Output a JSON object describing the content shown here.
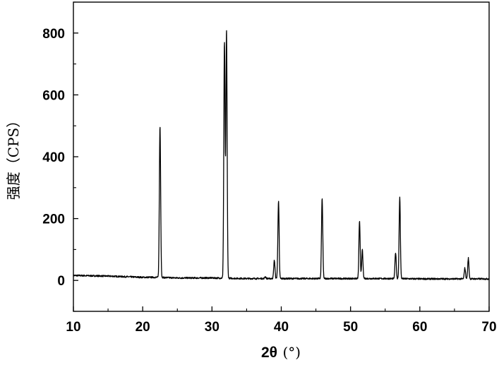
{
  "chart_data": {
    "type": "line",
    "title": "",
    "xlabel": {
      "main": "2θ",
      "unit": "(°)"
    },
    "ylabel": "强度（CPS）",
    "xlim": [
      10,
      70
    ],
    "ylim": [
      -100,
      900
    ],
    "xticks": [
      10,
      20,
      30,
      40,
      50,
      60,
      70
    ],
    "yticks": [
      0,
      200,
      400,
      600,
      800
    ],
    "grid": false,
    "legend": "none",
    "colors": {
      "line": "#000000",
      "axes": "#000000",
      "background": "#ffffff"
    },
    "baseline": [
      [
        10,
        16
      ],
      [
        15,
        14
      ],
      [
        20,
        10
      ],
      [
        22,
        10
      ],
      [
        25,
        8
      ],
      [
        30,
        8
      ],
      [
        35,
        6
      ],
      [
        40,
        6
      ],
      [
        45,
        6
      ],
      [
        50,
        6
      ],
      [
        55,
        6
      ],
      [
        60,
        5
      ],
      [
        65,
        5
      ],
      [
        70,
        5
      ]
    ],
    "peaks": [
      {
        "x": 22.5,
        "y": 500
      },
      {
        "x": 31.8,
        "y": 770
      },
      {
        "x": 32.1,
        "y": 810
      },
      {
        "x": 37.7,
        "y": 12
      },
      {
        "x": 39.0,
        "y": 65
      },
      {
        "x": 39.6,
        "y": 255
      },
      {
        "x": 45.9,
        "y": 265
      },
      {
        "x": 51.3,
        "y": 190
      },
      {
        "x": 51.7,
        "y": 100
      },
      {
        "x": 56.5,
        "y": 90
      },
      {
        "x": 57.1,
        "y": 268
      },
      {
        "x": 66.5,
        "y": 40
      },
      {
        "x": 67.0,
        "y": 72
      }
    ]
  }
}
